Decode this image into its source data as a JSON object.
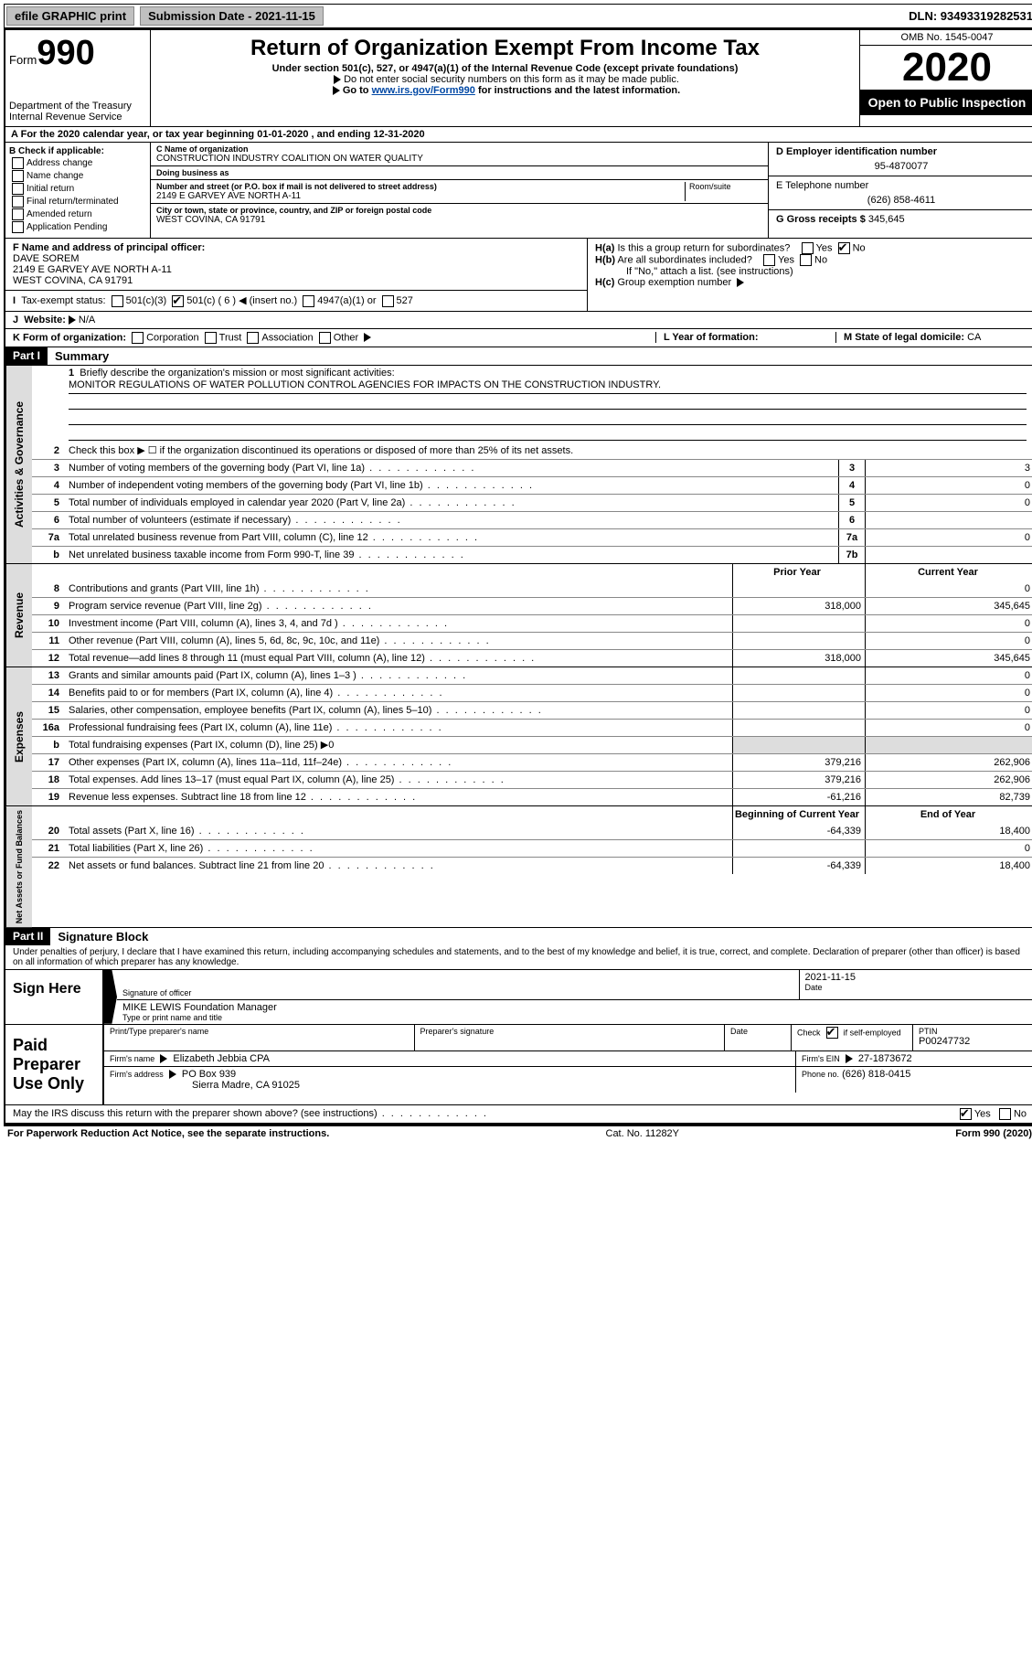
{
  "topbar": {
    "efile": "efile GRAPHIC print",
    "submission_label": "Submission Date - 2021-11-15",
    "dln": "DLN: 93493319282531"
  },
  "header": {
    "form_word": "Form",
    "form_num": "990",
    "dept": "Department of the Treasury",
    "irs": "Internal Revenue Service",
    "title": "Return of Organization Exempt From Income Tax",
    "subtitle": "Under section 501(c), 527, or 4947(a)(1) of the Internal Revenue Code (except private foundations)",
    "note1": "Do not enter social security numbers on this form as it may be made public.",
    "note2_pre": "Go to ",
    "note2_link": "www.irs.gov/Form990",
    "note2_post": " for instructions and the latest information.",
    "omb": "OMB No. 1545-0047",
    "year": "2020",
    "open": "Open to Public Inspection"
  },
  "rowA": "For the 2020 calendar year, or tax year beginning 01-01-2020     , and ending 12-31-2020",
  "boxB": {
    "label": "B Check if applicable:",
    "opts": [
      "Address change",
      "Name change",
      "Initial return",
      "Final return/terminated",
      "Amended return",
      "Application Pending"
    ]
  },
  "boxC": {
    "name_label": "C Name of organization",
    "name": "CONSTRUCTION INDUSTRY COALITION ON WATER QUALITY",
    "dba_label": "Doing business as",
    "dba": "",
    "addr_label": "Number and street (or P.O. box if mail is not delivered to street address)",
    "room_label": "Room/suite",
    "addr": "2149 E GARVEY AVE NORTH A-11",
    "city_label": "City or town, state or province, country, and ZIP or foreign postal code",
    "city": "WEST COVINA, CA  91791"
  },
  "boxD": {
    "label": "D Employer identification number",
    "value": "95-4870077"
  },
  "boxE": {
    "label": "E Telephone number",
    "value": "(626) 858-4611"
  },
  "boxG": {
    "label": "G Gross receipts $",
    "value": "345,645"
  },
  "boxF": {
    "label": "F  Name and address of principal officer:",
    "name": "DAVE SOREM",
    "addr1": "2149 E GARVEY AVE NORTH A-11",
    "addr2": "WEST COVINA, CA  91791"
  },
  "boxH": {
    "a": "Is this a group return for subordinates?",
    "b": "Are all subordinates included?",
    "note": "If \"No,\" attach a list. (see instructions)",
    "c": "Group exemption number"
  },
  "yesno": {
    "yes": "Yes",
    "no": "No"
  },
  "rowI": {
    "label": "Tax-exempt status:",
    "o1": "501(c)(3)",
    "o2": "501(c) ( 6 )",
    "o2_suffix": "(insert no.)",
    "o3": "4947(a)(1) or",
    "o4": "527"
  },
  "rowJ": {
    "label": "Website:",
    "value": "N/A"
  },
  "rowK": {
    "label": "K Form of organization:",
    "opts": [
      "Corporation",
      "Trust",
      "Association",
      "Other"
    ],
    "l_label": "L Year of formation:",
    "l_value": "",
    "m_label": "M State of legal domicile:",
    "m_value": "CA"
  },
  "part1": {
    "tag": "Part I",
    "title": "Summary"
  },
  "mission": {
    "label": "Briefly describe the organization's mission or most significant activities:",
    "text": "MONITOR REGULATIONS OF WATER POLLUTION CONTROL AGENCIES FOR IMPACTS ON THE CONSTRUCTION INDUSTRY."
  },
  "lines_gov": [
    {
      "n": "2",
      "d": "Check this box ▶ ☐  if the organization discontinued its operations or disposed of more than 25% of its net assets."
    },
    {
      "n": "3",
      "d": "Number of voting members of the governing body (Part VI, line 1a)",
      "box": "3",
      "v": "3"
    },
    {
      "n": "4",
      "d": "Number of independent voting members of the governing body (Part VI, line 1b)",
      "box": "4",
      "v": "0"
    },
    {
      "n": "5",
      "d": "Total number of individuals employed in calendar year 2020 (Part V, line 2a)",
      "box": "5",
      "v": "0"
    },
    {
      "n": "6",
      "d": "Total number of volunteers (estimate if necessary)",
      "box": "6",
      "v": ""
    },
    {
      "n": "7a",
      "d": "Total unrelated business revenue from Part VIII, column (C), line 12",
      "box": "7a",
      "v": "0"
    },
    {
      "n": "b",
      "d": "Net unrelated business taxable income from Form 990-T, line 39",
      "box": "7b",
      "v": ""
    }
  ],
  "col_headers": {
    "prior": "Prior Year",
    "current": "Current Year"
  },
  "col_headers2": {
    "prior": "Beginning of Current Year",
    "current": "End of Year"
  },
  "lines_rev": [
    {
      "n": "8",
      "d": "Contributions and grants (Part VIII, line 1h)",
      "p": "",
      "c": "0"
    },
    {
      "n": "9",
      "d": "Program service revenue (Part VIII, line 2g)",
      "p": "318,000",
      "c": "345,645"
    },
    {
      "n": "10",
      "d": "Investment income (Part VIII, column (A), lines 3, 4, and 7d )",
      "p": "",
      "c": "0"
    },
    {
      "n": "11",
      "d": "Other revenue (Part VIII, column (A), lines 5, 6d, 8c, 9c, 10c, and 11e)",
      "p": "",
      "c": "0"
    },
    {
      "n": "12",
      "d": "Total revenue—add lines 8 through 11 (must equal Part VIII, column (A), line 12)",
      "p": "318,000",
      "c": "345,645"
    }
  ],
  "lines_exp": [
    {
      "n": "13",
      "d": "Grants and similar amounts paid (Part IX, column (A), lines 1–3 )",
      "p": "",
      "c": "0"
    },
    {
      "n": "14",
      "d": "Benefits paid to or for members (Part IX, column (A), line 4)",
      "p": "",
      "c": "0"
    },
    {
      "n": "15",
      "d": "Salaries, other compensation, employee benefits (Part IX, column (A), lines 5–10)",
      "p": "",
      "c": "0"
    },
    {
      "n": "16a",
      "d": "Professional fundraising fees (Part IX, column (A), line 11e)",
      "p": "",
      "c": "0"
    },
    {
      "n": "b",
      "d": "Total fundraising expenses (Part IX, column (D), line 25) ▶0",
      "p": null,
      "c": null
    },
    {
      "n": "17",
      "d": "Other expenses (Part IX, column (A), lines 11a–11d, 11f–24e)",
      "p": "379,216",
      "c": "262,906"
    },
    {
      "n": "18",
      "d": "Total expenses. Add lines 13–17 (must equal Part IX, column (A), line 25)",
      "p": "379,216",
      "c": "262,906"
    },
    {
      "n": "19",
      "d": "Revenue less expenses. Subtract line 18 from line 12",
      "p": "-61,216",
      "c": "82,739"
    }
  ],
  "lines_net": [
    {
      "n": "20",
      "d": "Total assets (Part X, line 16)",
      "p": "-64,339",
      "c": "18,400"
    },
    {
      "n": "21",
      "d": "Total liabilities (Part X, line 26)",
      "p": "",
      "c": "0"
    },
    {
      "n": "22",
      "d": "Net assets or fund balances. Subtract line 21 from line 20",
      "p": "-64,339",
      "c": "18,400"
    }
  ],
  "vtabs": {
    "gov": "Activities & Governance",
    "rev": "Revenue",
    "exp": "Expenses",
    "net": "Net Assets or Fund Balances"
  },
  "part2": {
    "tag": "Part II",
    "title": "Signature Block"
  },
  "penalties": "Under penalties of perjury, I declare that I have examined this return, including accompanying schedules and statements, and to the best of my knowledge and belief, it is true, correct, and complete. Declaration of preparer (other than officer) is based on all information of which preparer has any knowledge.",
  "sign": {
    "here": "Sign Here",
    "sig_officer": "Signature of officer",
    "date": "Date",
    "date_val": "2021-11-15",
    "name": "MIKE LEWIS  Foundation Manager",
    "type_label": "Type or print name and title"
  },
  "paid": {
    "label": "Paid Preparer Use Only",
    "print_label": "Print/Type preparer's name",
    "sig_label": "Preparer's signature",
    "date_label": "Date",
    "check_label": "Check",
    "self_emp": "if self-employed",
    "ptin_label": "PTIN",
    "ptin": "P00247732",
    "firm_name_label": "Firm's name",
    "firm_name": "Elizabeth Jebbia CPA",
    "firm_ein_label": "Firm's EIN",
    "firm_ein": "27-1873672",
    "firm_addr_label": "Firm's address",
    "firm_addr1": "PO Box 939",
    "firm_addr2": "Sierra Madre, CA  91025",
    "phone_label": "Phone no.",
    "phone": "(626) 818-0415"
  },
  "discuss": "May the IRS discuss this return with the preparer shown above? (see instructions)",
  "footer": {
    "left": "For Paperwork Reduction Act Notice, see the separate instructions.",
    "mid": "Cat. No. 11282Y",
    "right": "Form 990 (2020)"
  }
}
